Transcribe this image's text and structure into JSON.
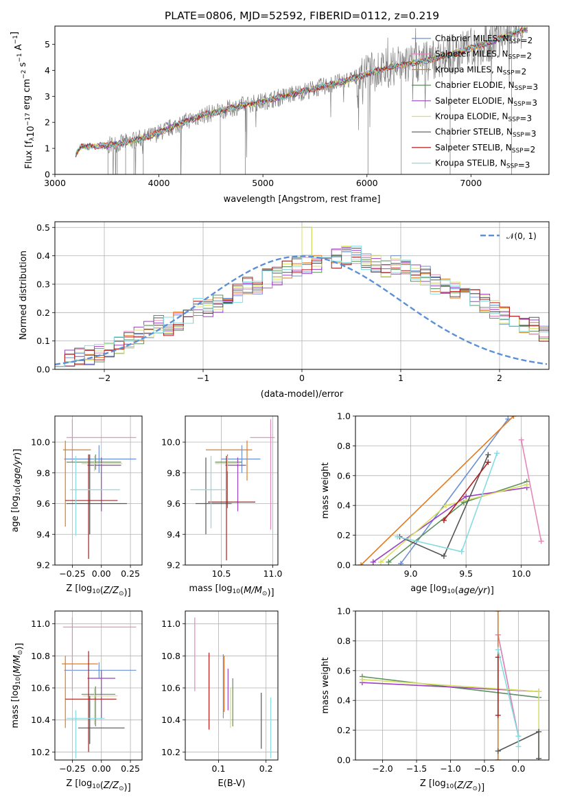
{
  "title": "PLATE=0806, MJD=52592, FIBERID=0112, z=0.219",
  "colors": {
    "Chabrier MILES": "#6a8fd6",
    "Salpeter MILES": "#e387b8",
    "Kroupa MILES": "#e07a1f",
    "Chabrier ELODIE": "#5b8f5b",
    "Salpeter ELODIE": "#9b3fc4",
    "Kroupa ELODIE": "#d8e060",
    "Chabrier STELIB": "#555555",
    "Salpeter STELIB": "#b21919",
    "Kroupa STELIB": "#86dbe0",
    "data": "#808080",
    "normal": "#5b8fd6"
  },
  "chart_data": [
    {
      "id": "spectrum",
      "type": "line",
      "xlabel": "wavelength [Angstrom, rest frame]",
      "ylabel": "Flux [f_λ 10^-17 erg cm^-2 s^-1 A^-1]",
      "xlim": [
        3000,
        7750
      ],
      "ylim": [
        0,
        5.7
      ],
      "xticks": [
        "3000",
        "4000",
        "5000",
        "6000",
        "7000"
      ],
      "yticks": [
        "0",
        "1",
        "2",
        "3",
        "4",
        "5"
      ],
      "grid": false,
      "legend_position": "top-right",
      "legend": [
        "Chabrier MILES, N_SSP=2",
        "Salpeter MILES, N_SSP=2",
        "Kroupa MILES, N_SSP=2",
        "Chabrier ELODIE, N_SSP=3",
        "Salpeter ELODIE, N_SSP=3",
        "Kroupa ELODIE, N_SSP=3",
        "Chabrier STELIB, N_SSP=3",
        "Salpeter STELIB, N_SSP=2",
        "Kroupa STELIB, N_SSP=3"
      ],
      "continuum": {
        "x": [
          3200,
          3250,
          3400,
          3500,
          3700,
          3900,
          4000,
          4200,
          4400,
          4600,
          4800,
          5000,
          5200,
          5500,
          5800,
          6000,
          6200,
          6400,
          6600,
          6800,
          7000,
          7200,
          7400,
          7500
        ],
        "y": [
          0.8,
          1.05,
          1.1,
          1.1,
          1.25,
          1.45,
          1.6,
          1.95,
          2.25,
          2.45,
          2.65,
          2.8,
          3.0,
          3.3,
          3.6,
          3.85,
          4.1,
          4.25,
          4.4,
          4.6,
          4.85,
          5.1,
          5.4,
          5.55
        ]
      }
    },
    {
      "id": "residuals",
      "type": "histogram",
      "xlabel": "(data-model)/error",
      "ylabel": "Normed distribution",
      "xlim": [
        -2.5,
        2.5
      ],
      "ylim": [
        0,
        0.52
      ],
      "xticks": [
        "−2",
        "−1",
        "0",
        "1",
        "2"
      ],
      "yticks": [
        "0.0",
        "0.1",
        "0.2",
        "0.3",
        "0.4",
        "0.5"
      ],
      "grid": true,
      "legend_position": "top-right",
      "normal_label": "𝒩(0, 1)",
      "bin_width": 0.1,
      "bin_start": -2.5,
      "base": [
        0.03,
        0.035,
        0.04,
        0.05,
        0.055,
        0.07,
        0.09,
        0.1,
        0.12,
        0.14,
        0.16,
        0.15,
        0.17,
        0.19,
        0.22,
        0.22,
        0.23,
        0.25,
        0.27,
        0.29,
        0.3,
        0.32,
        0.33,
        0.35,
        0.36,
        0.37,
        0.37,
        0.38,
        0.39,
        0.4,
        0.4,
        0.38,
        0.37,
        0.36,
        0.37,
        0.35,
        0.34,
        0.33,
        0.3,
        0.3,
        0.28,
        0.26,
        0.25,
        0.23,
        0.21,
        0.19,
        0.17,
        0.16,
        0.15,
        0.13,
        0.12,
        0.11,
        0.1,
        0.09,
        0.08,
        0.07,
        0.06,
        0.05,
        0.045,
        0.04
      ]
    },
    {
      "id": "age-vs-Z",
      "type": "errorbar",
      "xlabel": "Z [log10(Z/Z☉)]",
      "ylabel": "age  [log10(age/yr)]",
      "xlim": [
        -0.4,
        0.35
      ],
      "ylim": [
        9.2,
        10.17
      ],
      "xticks": [
        "−0.25",
        "0.00",
        "0.25"
      ],
      "yticks": [
        "9.2",
        "9.4",
        "9.6",
        "9.8",
        "10.0"
      ],
      "grid": true,
      "points": [
        {
          "model": "Chabrier MILES",
          "x": -0.02,
          "xerr": [
            0.3,
            0.32
          ],
          "y": 9.89,
          "yerr": [
            0.09,
            0.09
          ]
        },
        {
          "model": "Salpeter MILES",
          "x": -0.25,
          "xerr": [
            0.05,
            0.55
          ],
          "y": 10.03,
          "yerr": [
            0.16,
            0.12
          ]
        },
        {
          "model": "Kroupa MILES",
          "x": -0.31,
          "xerr": [
            0.02,
            0.22
          ],
          "y": 9.95,
          "yerr": [
            0.5,
            0.06
          ]
        },
        {
          "model": "Chabrier ELODIE",
          "x": -0.05,
          "xerr": [
            0.25,
            0.22
          ],
          "y": 9.87,
          "yerr": [
            0.05,
            0.05
          ]
        },
        {
          "model": "Salpeter ELODIE",
          "x": 0.0,
          "xerr": [
            0.12,
            0.17
          ],
          "y": 9.85,
          "yerr": [
            0.3,
            0.05
          ]
        },
        {
          "model": "Kroupa ELODIE",
          "x": -0.06,
          "xerr": [
            0.11,
            0.24
          ],
          "y": 9.86,
          "yerr": [
            0.05,
            0.05
          ]
        },
        {
          "model": "Chabrier STELIB",
          "x": -0.1,
          "xerr": [
            0.2,
            0.32
          ],
          "y": 9.6,
          "yerr": [
            0.2,
            0.32
          ]
        },
        {
          "model": "Salpeter STELIB",
          "x": -0.11,
          "xerr": [
            0.2,
            0.25
          ],
          "y": 9.62,
          "yerr": [
            0.38,
            0.3
          ]
        },
        {
          "model": "Kroupa STELIB",
          "x": -0.22,
          "xerr": [
            0.05,
            0.38
          ],
          "y": 9.69,
          "yerr": [
            0.3,
            0.22
          ]
        }
      ]
    },
    {
      "id": "age-vs-mass",
      "type": "errorbar",
      "xlabel": "mass [log10(M/M☉)]",
      "ylabel": "",
      "xlim": [
        10.15,
        11.05
      ],
      "ylim": [
        9.2,
        10.17
      ],
      "xticks": [
        "10.5",
        "11.0"
      ],
      "yticks": [
        "9.2",
        "9.4",
        "9.6",
        "9.8",
        "10.0"
      ],
      "grid": true,
      "points": [
        {
          "model": "Chabrier MILES",
          "x": 10.7,
          "xerr": [
            0.2,
            0.18
          ],
          "y": 9.89,
          "yerr": [
            0.09,
            0.09
          ]
        },
        {
          "model": "Salpeter MILES",
          "x": 10.98,
          "xerr": [
            0.2,
            0.04
          ],
          "y": 10.03,
          "yerr": [
            0.6,
            0.12
          ]
        },
        {
          "model": "Kroupa MILES",
          "x": 10.75,
          "xerr": [
            0.4,
            0.05
          ],
          "y": 9.95,
          "yerr": [
            0.2,
            0.06
          ]
        },
        {
          "model": "Chabrier ELODIE",
          "x": 10.56,
          "xerr": [
            0.12,
            0.14
          ],
          "y": 9.87,
          "yerr": [
            0.3,
            0.05
          ]
        },
        {
          "model": "Salpeter ELODIE",
          "x": 10.66,
          "xerr": [
            0.12,
            0.08
          ],
          "y": 9.85,
          "yerr": [
            0.3,
            0.05
          ]
        },
        {
          "model": "Kroupa ELODIE",
          "x": 10.56,
          "xerr": [
            0.12,
            0.12
          ],
          "y": 9.86,
          "yerr": [
            0.05,
            0.05
          ]
        },
        {
          "model": "Chabrier STELIB",
          "x": 10.35,
          "xerr": [
            0.1,
            0.25
          ],
          "y": 9.6,
          "yerr": [
            0.2,
            0.3
          ]
        },
        {
          "model": "Salpeter STELIB",
          "x": 10.55,
          "xerr": [
            0.18,
            0.28
          ],
          "y": 9.61,
          "yerr": [
            0.38,
            0.3
          ]
        },
        {
          "model": "Kroupa STELIB",
          "x": 10.4,
          "xerr": [
            0.2,
            0.15
          ],
          "y": 9.69,
          "yerr": [
            0.25,
            0.22
          ]
        }
      ]
    },
    {
      "id": "weight-vs-age",
      "type": "line",
      "xlabel": "age  [log10(age/yr)]",
      "ylabel": "mass weight",
      "xlim": [
        8.5,
        10.25
      ],
      "ylim": [
        0,
        1.0
      ],
      "xticks": [
        "9.0",
        "9.5",
        "10.0"
      ],
      "yticks": [
        "0.0",
        "0.2",
        "0.4",
        "0.6",
        "0.8",
        "1.0"
      ],
      "grid": true,
      "series": [
        {
          "model": "Chabrier MILES",
          "x": [
            8.91,
            9.88
          ],
          "y": [
            0.01,
            0.98
          ]
        },
        {
          "model": "Salpeter MILES",
          "x": [
            10.0,
            10.18
          ],
          "y": [
            0.84,
            0.16
          ]
        },
        {
          "model": "Kroupa MILES",
          "x": [
            8.55,
            9.93
          ],
          "y": [
            0.0,
            1.0
          ]
        },
        {
          "model": "Chabrier ELODIE",
          "x": [
            8.8,
            9.48,
            10.05
          ],
          "y": [
            0.02,
            0.42,
            0.56
          ]
        },
        {
          "model": "Salpeter ELODIE",
          "x": [
            8.66,
            9.5,
            10.05
          ],
          "y": [
            0.02,
            0.46,
            0.52
          ]
        },
        {
          "model": "Kroupa ELODIE",
          "x": [
            8.73,
            9.32,
            10.05
          ],
          "y": [
            0.02,
            0.4,
            0.54
          ]
        },
        {
          "model": "Chabrier STELIB",
          "x": [
            8.9,
            9.3,
            9.7
          ],
          "y": [
            0.19,
            0.06,
            0.74
          ]
        },
        {
          "model": "Salpeter STELIB",
          "x": [
            9.3,
            9.7
          ],
          "y": [
            0.3,
            0.69
          ]
        },
        {
          "model": "Kroupa STELIB",
          "x": [
            8.88,
            9.46,
            9.78
          ],
          "y": [
            0.19,
            0.09,
            0.75
          ]
        }
      ]
    },
    {
      "id": "mass-vs-Z",
      "type": "errorbar",
      "xlabel": "Z [log10(Z/Z☉)]",
      "ylabel": "mass [log10(M/M☉)]",
      "xlim": [
        -0.4,
        0.35
      ],
      "ylim": [
        10.15,
        11.08
      ],
      "xticks": [
        "−0.25",
        "0.00",
        "0.25"
      ],
      "yticks": [
        "10.2",
        "10.4",
        "10.6",
        "10.8",
        "11.0"
      ],
      "grid": true,
      "points": [
        {
          "model": "Chabrier MILES",
          "x": -0.02,
          "xerr": [
            0.3,
            0.32
          ],
          "y": 10.71,
          "yerr": [
            0.05,
            0.05
          ]
        },
        {
          "model": "Salpeter MILES",
          "x": -0.25,
          "xerr": [
            0.08,
            0.55
          ],
          "y": 10.98,
          "yerr": [
            0.4,
            0.06
          ]
        },
        {
          "model": "Kroupa MILES",
          "x": -0.31,
          "xerr": [
            0.03,
            0.28
          ],
          "y": 10.75,
          "yerr": [
            0.4,
            0.05
          ]
        },
        {
          "model": "Chabrier ELODIE",
          "x": -0.05,
          "xerr": [
            0.12,
            0.17
          ],
          "y": 10.56,
          "yerr": [
            0.2,
            0.05
          ]
        },
        {
          "model": "Salpeter ELODIE",
          "x": 0.0,
          "xerr": [
            0.12,
            0.12
          ],
          "y": 10.66,
          "yerr": [
            0.25,
            0.05
          ]
        },
        {
          "model": "Kroupa ELODIE",
          "x": -0.06,
          "xerr": [
            0.1,
            0.2
          ],
          "y": 10.55,
          "yerr": [
            0.18,
            0.05
          ]
        },
        {
          "model": "Chabrier STELIB",
          "x": -0.1,
          "xerr": [
            0.1,
            0.3
          ],
          "y": 10.35,
          "yerr": [
            0.1,
            0.2
          ]
        },
        {
          "model": "Salpeter STELIB",
          "x": -0.11,
          "xerr": [
            0.2,
            0.24
          ],
          "y": 10.53,
          "yerr": [
            0.33,
            0.3
          ]
        },
        {
          "model": "Kroupa STELIB",
          "x": -0.22,
          "xerr": [
            0.08,
            0.25
          ],
          "y": 10.41,
          "yerr": [
            0.25,
            0.05
          ]
        }
      ]
    },
    {
      "id": "mass-vs-EBV",
      "type": "errorbar",
      "xlabel": "E(B-V)",
      "ylabel": "",
      "xlim": [
        0.03,
        0.225
      ],
      "ylim": [
        10.15,
        11.08
      ],
      "xticks": [
        "0.1",
        "0.2"
      ],
      "yticks": [
        "10.2",
        "10.4",
        "10.6",
        "10.8",
        "11.0"
      ],
      "grid": true,
      "points": [
        {
          "model": "Chabrier MILES",
          "x": 0.11,
          "y": 10.71,
          "yerr": [
            0.3,
            0.1
          ]
        },
        {
          "model": "Salpeter MILES",
          "x": 0.05,
          "y": 10.98,
          "yerr": [
            0.4,
            0.06
          ]
        },
        {
          "model": "Kroupa MILES",
          "x": 0.112,
          "y": 10.75,
          "yerr": [
            0.3,
            0.05
          ]
        },
        {
          "model": "Chabrier ELODIE",
          "x": 0.13,
          "y": 10.56,
          "yerr": [
            0.2,
            0.1
          ]
        },
        {
          "model": "Salpeter ELODIE",
          "x": 0.12,
          "y": 10.6,
          "yerr": [
            0.14,
            0.12
          ]
        },
        {
          "model": "Kroupa ELODIE",
          "x": 0.125,
          "y": 10.5,
          "yerr": [
            0.15,
            0.1
          ]
        },
        {
          "model": "Chabrier STELIB",
          "x": 0.19,
          "y": 10.4,
          "yerr": [
            0.18,
            0.17
          ]
        },
        {
          "model": "Salpeter STELIB",
          "x": 0.08,
          "y": 10.58,
          "yerr": [
            0.24,
            0.24
          ]
        },
        {
          "model": "Kroupa STELIB",
          "x": 0.21,
          "y": 10.4,
          "yerr": [
            0.24,
            0.14
          ]
        }
      ]
    },
    {
      "id": "weight-vs-Z",
      "type": "line",
      "xlabel": "Z [log10(Z/Z☉)]",
      "ylabel": "mass weight",
      "xlim": [
        -2.4,
        0.45
      ],
      "ylim": [
        0,
        1.0
      ],
      "xticks": [
        "−2.0",
        "−1.5",
        "−1.0",
        "−0.5",
        "0.0"
      ],
      "yticks": [
        "0.0",
        "0.2",
        "0.4",
        "0.6",
        "0.8",
        "1.0"
      ],
      "grid": true,
      "series": [
        {
          "model": "Chabrier MILES",
          "x": [
            -0.3,
            0.0
          ],
          "y": [
            0.84,
            0.16
          ]
        },
        {
          "model": "Salpeter MILES",
          "x": [
            -0.3,
            0.0
          ],
          "y": [
            0.84,
            0.16
          ]
        },
        {
          "model": "Kroupa MILES",
          "x": [
            -0.3,
            -0.3
          ],
          "y": [
            0.0,
            1.0
          ]
        },
        {
          "model": "Chabrier ELODIE",
          "x": [
            -2.3,
            0.3
          ],
          "y": [
            0.56,
            0.42
          ]
        },
        {
          "model": "Salpeter ELODIE",
          "x": [
            -2.3,
            0.3
          ],
          "y": [
            0.52,
            0.46
          ]
        },
        {
          "model": "Kroupa ELODIE",
          "x": [
            -2.3,
            0.3,
            0.3
          ],
          "y": [
            0.54,
            0.46,
            0.01
          ]
        },
        {
          "model": "Chabrier STELIB",
          "x": [
            -0.3,
            0.3,
            0.3
          ],
          "y": [
            0.06,
            0.19,
            0.01
          ]
        },
        {
          "model": "Salpeter STELIB",
          "x": [
            -0.3,
            -0.3
          ],
          "y": [
            0.3,
            0.69
          ]
        },
        {
          "model": "Kroupa STELIB",
          "x": [
            -0.3,
            0.0,
            0.0
          ],
          "y": [
            0.74,
            0.16,
            0.09
          ]
        }
      ]
    }
  ]
}
